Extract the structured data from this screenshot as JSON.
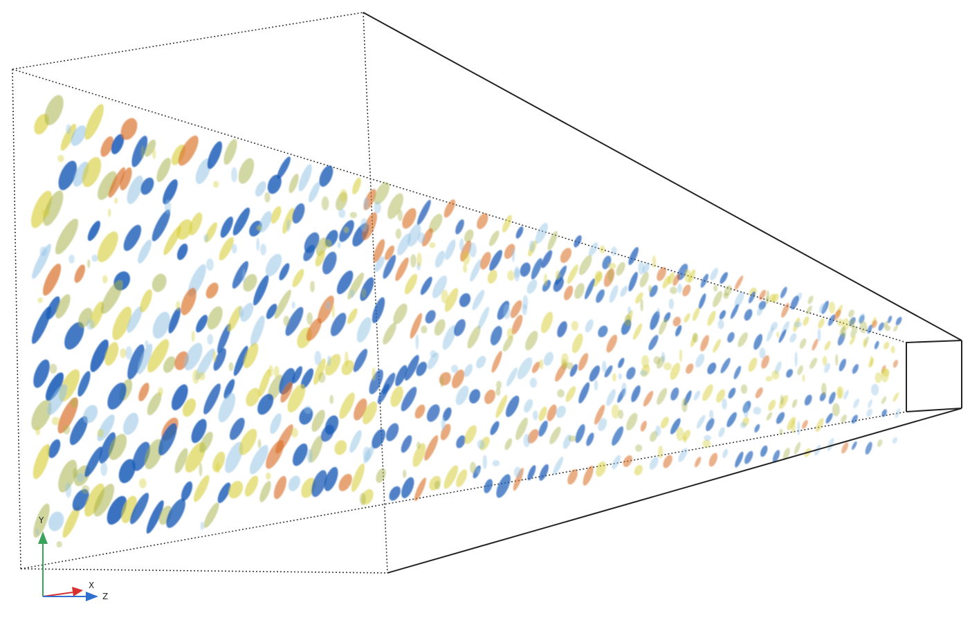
{
  "axes": {
    "labels": {
      "y": "Y",
      "x": "X",
      "z": "Z"
    },
    "colors": {
      "y": "#3aa35a",
      "x": "#d83030",
      "z": "#2f6fd0"
    }
  },
  "colors": {
    "blob_blue": "#1f5fb8",
    "blob_light_blue": "#8fc1e3",
    "blob_yellow": "#d8cf3e",
    "blob_olive": "#a7b24a",
    "blob_orange": "#d97028",
    "frame": "#222222"
  }
}
